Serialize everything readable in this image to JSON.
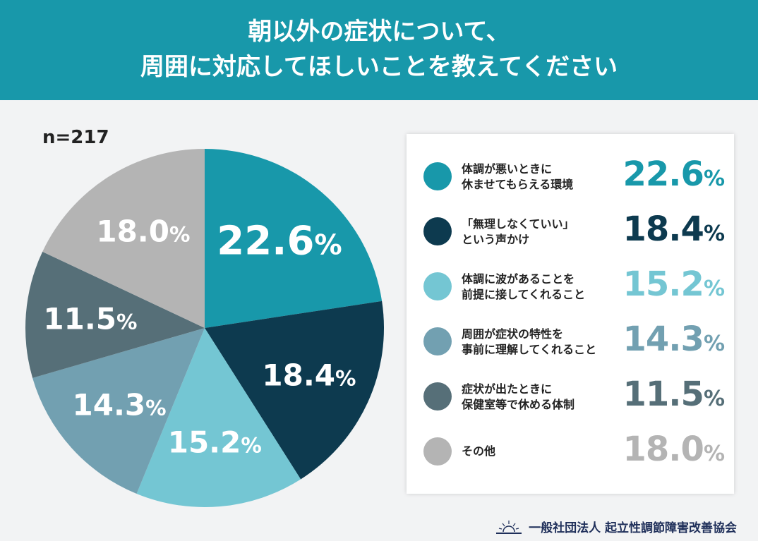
{
  "header": {
    "line1": "朝以外の症状について、",
    "line2": "周囲に対応してほしいことを教えてください"
  },
  "sample": "n=217",
  "chart_data": {
    "type": "pie",
    "title": "朝以外の症状について、周囲に対応してほしいことを教えてください",
    "unit": "%",
    "slices": [
      {
        "label": "体調が悪いときに休ませてもらえる環境",
        "line1": "体調が悪いときに",
        "line2": "休ませてもらえる環境",
        "value": 22.6,
        "display": "22.6",
        "color": "#1898aa"
      },
      {
        "label": "「無理しなくていい」という声かけ",
        "line1": "「無理しなくていい」",
        "line2": "という声かけ",
        "value": 18.4,
        "display": "18.4",
        "color": "#0d3a4f"
      },
      {
        "label": "体調に波があることを前提に接してくれること",
        "line1": "体調に波があることを",
        "line2": "前提に接してくれること",
        "value": 15.2,
        "display": "15.2",
        "color": "#74c6d3"
      },
      {
        "label": "周囲が症状の特性を事前に理解してくれること",
        "line1": "周囲が症状の特性を",
        "line2": "事前に理解してくれること",
        "value": 14.3,
        "display": "14.3",
        "color": "#72a0b1"
      },
      {
        "label": "症状が出たときに保健室等で休める体制",
        "line1": "症状が出たときに",
        "line2": "保健室等で休める体制",
        "value": 11.5,
        "display": "11.5",
        "color": "#566f78"
      },
      {
        "label": "その他",
        "line1": "その他",
        "line2": "",
        "value": 18.0,
        "display": "18.0",
        "color": "#b4b4b4"
      }
    ]
  },
  "footer": {
    "org": "一般社団法人 起立性調節障害改善協会"
  }
}
